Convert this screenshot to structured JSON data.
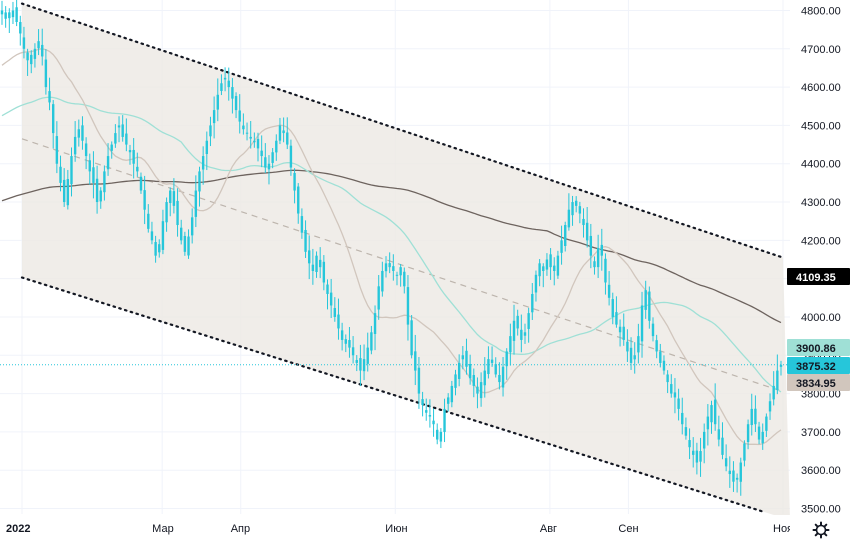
{
  "chart_data": {
    "type": "candlestick",
    "ylim": [
      3480,
      4830
    ],
    "y_ticks": [
      "4800.00",
      "4700.00",
      "4600.00",
      "4500.00",
      "4400.00",
      "4300.00",
      "4200.00",
      "4100.00",
      "4000.00",
      "3900.00",
      "3800.00",
      "3700.00",
      "3600.00",
      "3500.00"
    ],
    "y_tick_values": [
      4800,
      4700,
      4600,
      4500,
      4400,
      4300,
      4200,
      4100,
      4000,
      3900,
      3800,
      3700,
      3600,
      3500
    ],
    "x_labels": [
      "2022",
      "Мар",
      "Апр",
      "Июн",
      "Авг",
      "Сен",
      "Ноя"
    ],
    "x_label_dates": [
      "2022-01-03",
      "2022-03-01",
      "2022-04-01",
      "2022-06-01",
      "2022-08-01",
      "2022-09-01",
      "2022-11-01"
    ],
    "x_range": [
      "2021-12-27",
      "2022-11-01"
    ],
    "grid": true,
    "colors": {
      "candle": "#26c6da",
      "channel_fill": "#ece8e4",
      "ma_long": "#6d635e",
      "ma_mid": "#9fe0d6",
      "ma_short": "#d1c6bd",
      "trend_dash": "#bdb5ad",
      "last_line": "#26c6da"
    },
    "channel": {
      "upper_start": {
        "date": "2022-01-03",
        "value": 4818
      },
      "upper_end": {
        "date": "2022-11-01",
        "value": 4155
      },
      "lower_start": {
        "date": "2022-01-03",
        "value": 4103
      },
      "lower_end": {
        "date": "2022-10-25",
        "value": 3490
      }
    },
    "trend_midline": {
      "start": {
        "date": "2022-01-03",
        "value": 4465
      },
      "end": {
        "date": "2022-11-01",
        "value": 3805
      }
    },
    "closes": [
      4790,
      4795,
      4780,
      4800,
      4770,
      4740,
      4700,
      4670,
      4660,
      4700,
      4720,
      4680,
      4600,
      4560,
      4480,
      4400,
      4350,
      4300,
      4360,
      4420,
      4470,
      4490,
      4460,
      4420,
      4380,
      4350,
      4300,
      4330,
      4380,
      4420,
      4450,
      4480,
      4500,
      4470,
      4450,
      4430,
      4400,
      4380,
      4330,
      4280,
      4230,
      4200,
      4160,
      4190,
      4250,
      4300,
      4330,
      4290,
      4240,
      4200,
      4170,
      4210,
      4260,
      4330,
      4380,
      4420,
      4460,
      4500,
      4540,
      4580,
      4610,
      4620,
      4600,
      4570,
      4540,
      4510,
      4490,
      4480,
      4470,
      4460,
      4440,
      4420,
      4390,
      4400,
      4430,
      4460,
      4500,
      4480,
      4450,
      4390,
      4330,
      4270,
      4220,
      4170,
      4140,
      4120,
      4160,
      4130,
      4090,
      4060,
      4030,
      4000,
      3970,
      3940,
      3930,
      3920,
      3900,
      3880,
      3860,
      3890,
      3920,
      3960,
      4010,
      4080,
      4120,
      4140,
      4130,
      4120,
      4110,
      4130,
      4080,
      3980,
      3900,
      3860,
      3800,
      3770,
      3750,
      3740,
      3720,
      3680,
      3700,
      3760,
      3790,
      3820,
      3850,
      3880,
      3900,
      3870,
      3840,
      3820,
      3800,
      3830,
      3860,
      3890,
      3880,
      3850,
      3830,
      3870,
      3910,
      3950,
      3990,
      3970,
      3940,
      3960,
      4010,
      4060,
      4110,
      4140,
      4120,
      4150,
      4130,
      4120,
      4160,
      4200,
      4240,
      4280,
      4300,
      4290,
      4270,
      4240,
      4200,
      4160,
      4130,
      4180,
      4160,
      4090,
      4050,
      4000,
      3980,
      3960,
      3940,
      3910,
      3880,
      3900,
      3950,
      4030,
      4070,
      3990,
      3950,
      3910,
      3880,
      3860,
      3830,
      3800,
      3790,
      3760,
      3720,
      3690,
      3660,
      3640,
      3620,
      3650,
      3700,
      3740,
      3770,
      3720,
      3680,
      3640,
      3610,
      3590,
      3570,
      3580,
      3620,
      3670,
      3720,
      3760,
      3720,
      3680,
      3700,
      3740,
      3780,
      3820,
      3860,
      3875
    ],
    "last_price_badges": [
      {
        "value": "4109.35",
        "num": 4109.35,
        "bg": "#000000",
        "fg": "#ffffff"
      },
      {
        "value": "3900.86",
        "num": 3900.86,
        "bg": "#9fe0d6",
        "fg": "#131722"
      },
      {
        "value": "3875.32",
        "num": 3875.32,
        "bg": "#26c6da",
        "fg": "#131722"
      },
      {
        "value": "3834.95",
        "num": 3834.95,
        "bg": "#d1c6bd",
        "fg": "#131722"
      }
    ]
  },
  "ui": {
    "settings_icon": "gear-icon"
  }
}
